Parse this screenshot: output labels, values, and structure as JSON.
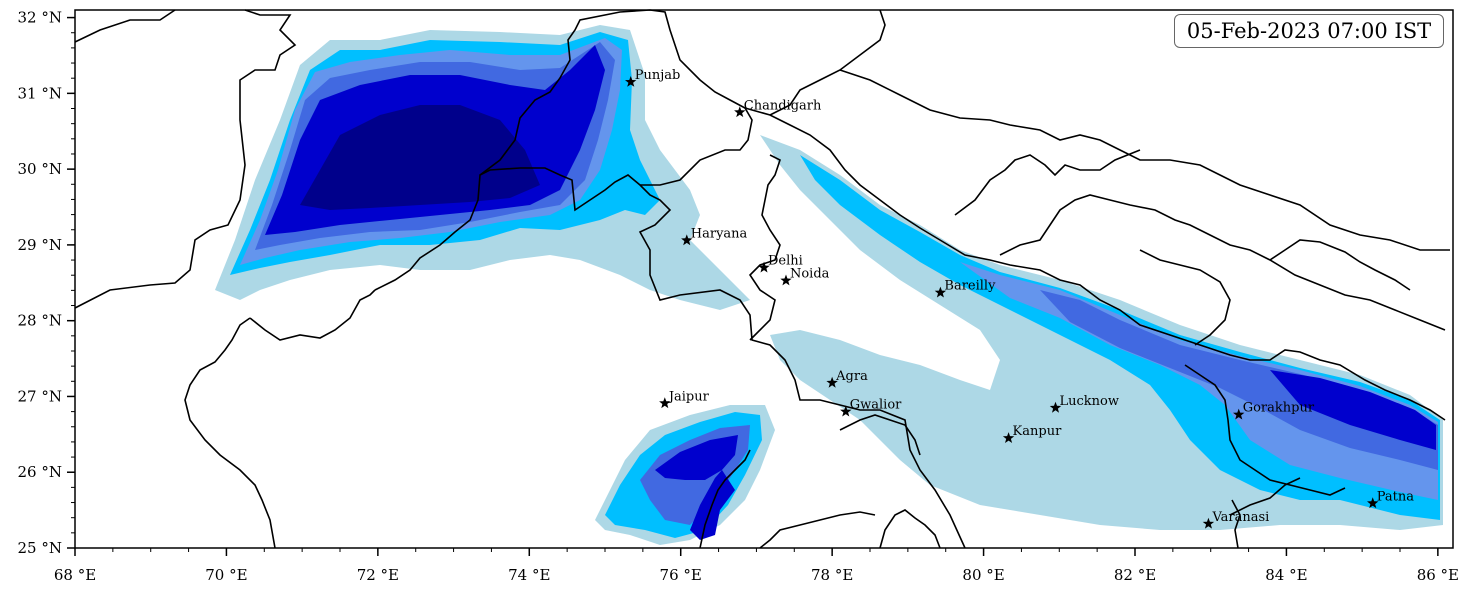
{
  "timestamp": "05-Feb-2023 07:00 IST",
  "colors": {
    "level1": "#add8e6",
    "level2": "#00bfff",
    "level3": "#6495ed",
    "level4": "#4169e1",
    "level5": "#0000cd",
    "level6": "#00008b"
  },
  "lon_ticks": [
    "68 °E",
    "70 °E",
    "72 °E",
    "74 °E",
    "76 °E",
    "78 °E",
    "80 °E",
    "82 °E",
    "84 °E",
    "86 °E"
  ],
  "lat_ticks": [
    "32 °N",
    "31 °N",
    "30 °N",
    "29 °N",
    "28 °N",
    "27 °N",
    "26 °N",
    "25 °N"
  ],
  "cities": [
    {
      "name": "Punjab",
      "lon": 75.34,
      "lat": 31.15
    },
    {
      "name": "Chandigarh",
      "lon": 76.78,
      "lat": 30.75
    },
    {
      "name": "Haryana",
      "lon": 76.08,
      "lat": 29.06
    },
    {
      "name": "Delhi",
      "lon": 77.1,
      "lat": 28.7
    },
    {
      "name": "Noida",
      "lon": 77.39,
      "lat": 28.53
    },
    {
      "name": "Bareilly",
      "lon": 79.43,
      "lat": 28.37
    },
    {
      "name": "Agra",
      "lon": 78.0,
      "lat": 27.18
    },
    {
      "name": "Jaipur",
      "lon": 75.79,
      "lat": 26.91
    },
    {
      "name": "Gwalior",
      "lon": 78.18,
      "lat": 26.8
    },
    {
      "name": "Lucknow",
      "lon": 80.95,
      "lat": 26.85
    },
    {
      "name": "Kanpur",
      "lon": 80.33,
      "lat": 26.45
    },
    {
      "name": "Gorakhpur",
      "lon": 83.37,
      "lat": 26.76
    },
    {
      "name": "Varanasi",
      "lon": 82.97,
      "lat": 25.32
    },
    {
      "name": "Patna",
      "lon": 85.14,
      "lat": 25.59
    }
  ]
}
